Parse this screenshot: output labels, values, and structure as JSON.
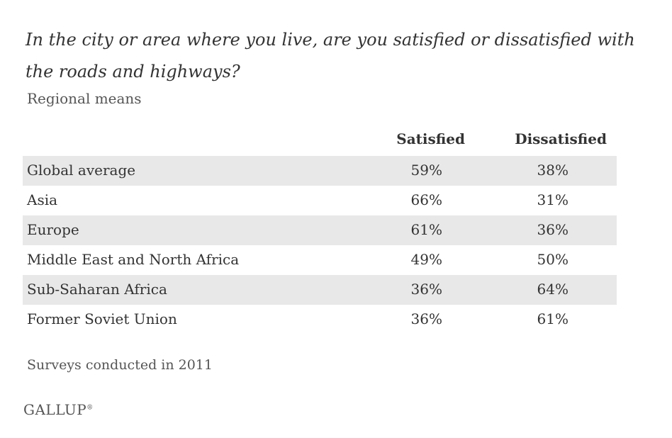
{
  "chart_data": {
    "type": "table",
    "title": "In the city or area where you live, are you satisfied or dissatisfied with the roads and highways?",
    "subtitle": "Regional means",
    "columns": [
      "Satisfied",
      "Dissatisfied"
    ],
    "rows": [
      {
        "region": "Global average",
        "satisfied": "59%",
        "dissatisfied": "38%"
      },
      {
        "region": "Asia",
        "satisfied": "66%",
        "dissatisfied": "31%"
      },
      {
        "region": "Europe",
        "satisfied": "61%",
        "dissatisfied": "36%"
      },
      {
        "region": "Middle East and North Africa",
        "satisfied": "49%",
        "dissatisfied": "50%"
      },
      {
        "region": "Sub-Saharan Africa",
        "satisfied": "36%",
        "dissatisfied": "64%"
      },
      {
        "region": "Former Soviet Union",
        "satisfied": "36%",
        "dissatisfied": "61%"
      }
    ],
    "values_satisfied": [
      59,
      66,
      61,
      49,
      36,
      36
    ],
    "values_dissatisfied": [
      38,
      31,
      36,
      50,
      64,
      61
    ],
    "footnote": "Surveys conducted in 2011"
  },
  "branding": {
    "logo_text": "GALLUP",
    "logo_mark": "®"
  },
  "colors": {
    "row_shade": "#e8e8e8",
    "text": "#333333",
    "muted_text": "#555555"
  }
}
